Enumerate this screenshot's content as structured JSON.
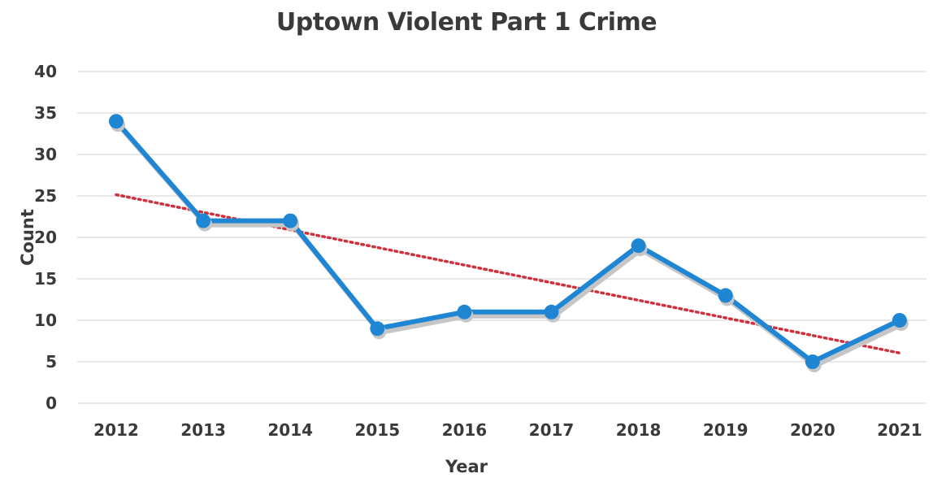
{
  "chart_data": {
    "type": "line",
    "title": "Uptown Violent Part 1 Crime",
    "xlabel": "Year",
    "ylabel": "Count",
    "categories": [
      "2012",
      "2013",
      "2014",
      "2015",
      "2016",
      "2017",
      "2018",
      "2019",
      "2020",
      "2021"
    ],
    "series": [
      {
        "values": [
          34,
          22,
          22,
          9,
          11,
          11,
          19,
          13,
          5,
          10
        ],
        "color": "#1f86d4"
      }
    ],
    "trendline": {
      "type": "linear",
      "style": "dotted",
      "color": "#d0303c"
    },
    "ylim": [
      0,
      40
    ],
    "yticks": [
      0,
      5,
      10,
      15,
      20,
      25,
      30,
      35,
      40
    ],
    "grid": true,
    "legend": "none"
  }
}
